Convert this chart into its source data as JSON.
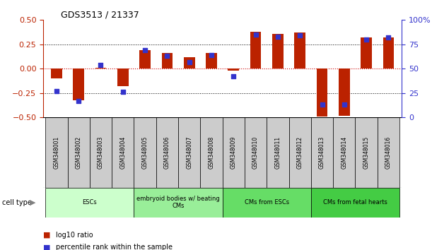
{
  "title": "GDS3513 / 21337",
  "samples": [
    "GSM348001",
    "GSM348002",
    "GSM348003",
    "GSM348004",
    "GSM348005",
    "GSM348006",
    "GSM348007",
    "GSM348008",
    "GSM348009",
    "GSM348010",
    "GSM348011",
    "GSM348012",
    "GSM348013",
    "GSM348014",
    "GSM348015",
    "GSM348016"
  ],
  "log10_ratio": [
    -0.1,
    -0.32,
    0.01,
    -0.18,
    0.19,
    0.16,
    0.12,
    0.16,
    -0.02,
    0.38,
    0.36,
    0.37,
    -0.49,
    -0.48,
    0.32,
    0.32
  ],
  "percentile_rank": [
    27,
    17,
    54,
    26,
    69,
    63,
    57,
    64,
    42,
    85,
    83,
    84,
    13,
    13,
    80,
    82
  ],
  "bar_color": "#bb2200",
  "dot_color": "#3333cc",
  "ylim_left": [
    -0.5,
    0.5
  ],
  "ylim_right": [
    0,
    100
  ],
  "yticks_left": [
    -0.5,
    -0.25,
    0,
    0.25,
    0.5
  ],
  "yticks_right": [
    0,
    25,
    50,
    75,
    100
  ],
  "hline_color": "#cc0000",
  "dotline_color": "black",
  "cell_types": [
    {
      "label": "ESCs",
      "start": 0,
      "end": 3,
      "color": "#ccffcc"
    },
    {
      "label": "embryoid bodies w/ beating\nCMs",
      "start": 4,
      "end": 7,
      "color": "#99ee99"
    },
    {
      "label": "CMs from ESCs",
      "start": 8,
      "end": 11,
      "color": "#66dd66"
    },
    {
      "label": "CMs from fetal hearts",
      "start": 12,
      "end": 15,
      "color": "#44cc44"
    }
  ],
  "legend_red": "log10 ratio",
  "legend_blue": "percentile rank within the sample",
  "bar_width": 0.5,
  "sample_box_color": "#cccccc",
  "cell_type_label": "cell type"
}
